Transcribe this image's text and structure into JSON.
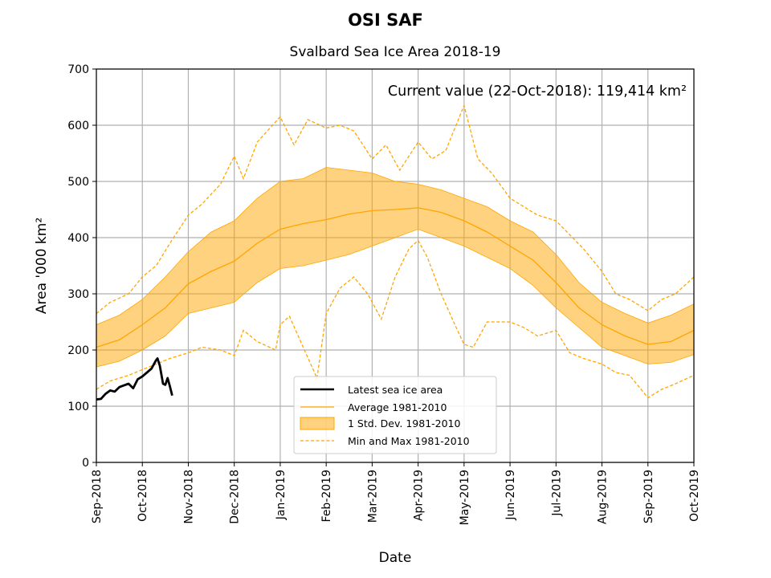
{
  "chart_data": {
    "type": "line",
    "suptitle": "OSI SAF",
    "title": "Svalbard Sea Ice Area 2018-19",
    "annotation": "Current value (22-Oct-2018): 119,414 km²",
    "xlabel": "Date",
    "ylabel": "Area '000 km²",
    "ylim": [
      0,
      700
    ],
    "yticks": [
      0,
      100,
      200,
      300,
      400,
      500,
      600,
      700
    ],
    "xlim": [
      0,
      13
    ],
    "xticks": [
      {
        "pos": 0,
        "label": "Sep-2018"
      },
      {
        "pos": 1,
        "label": "Oct-2018"
      },
      {
        "pos": 2,
        "label": "Nov-2018"
      },
      {
        "pos": 3,
        "label": "Dec-2018"
      },
      {
        "pos": 4,
        "label": "Jan-2019"
      },
      {
        "pos": 5,
        "label": "Feb-2019"
      },
      {
        "pos": 6,
        "label": "Mar-2019"
      },
      {
        "pos": 7,
        "label": "Apr-2019"
      },
      {
        "pos": 8,
        "label": "May-2019"
      },
      {
        "pos": 9,
        "label": "Jun-2019"
      },
      {
        "pos": 10,
        "label": "Jul-2019"
      },
      {
        "pos": 11,
        "label": "Aug-2019"
      },
      {
        "pos": 12,
        "label": "Sep-2019"
      },
      {
        "pos": 13,
        "label": "Oct-2019"
      }
    ],
    "grid": true,
    "legend_position": "lower-center",
    "legend": [
      {
        "key": "latest",
        "label": "Latest sea ice area"
      },
      {
        "key": "average",
        "label": "Average 1981-2010"
      },
      {
        "key": "std",
        "label": "1 Std. Dev. 1981-2010"
      },
      {
        "key": "minmax",
        "label": "Min and Max 1981-2010"
      }
    ],
    "colors": {
      "latest": "#000000",
      "average": "#ffa500",
      "band": "#ffa500",
      "band_opacity": 0.5,
      "minmax": "#ffa500",
      "grid": "#b0b0b0"
    },
    "series": [
      {
        "name": "Latest sea ice area",
        "x": [
          0,
          0.1,
          0.2,
          0.3,
          0.4,
          0.5,
          0.6,
          0.7,
          0.8,
          0.9,
          1.0,
          1.1,
          1.2,
          1.3,
          1.33,
          1.38,
          1.45,
          1.5,
          1.55,
          1.6,
          1.65
        ],
        "y": [
          112,
          113,
          122,
          128,
          126,
          134,
          137,
          140,
          132,
          148,
          153,
          160,
          167,
          182,
          185,
          172,
          140,
          138,
          150,
          135,
          119
        ]
      },
      {
        "name": "Average 1981-2010",
        "x": [
          0,
          0.5,
          1,
          1.5,
          2,
          2.5,
          3,
          3.5,
          4,
          4.5,
          5,
          5.5,
          6,
          6.5,
          7,
          7.5,
          8,
          8.5,
          9,
          9.5,
          10,
          10.5,
          11,
          11.5,
          12,
          12.5,
          13
        ],
        "y": [
          205,
          218,
          245,
          275,
          318,
          340,
          358,
          390,
          415,
          425,
          432,
          442,
          448,
          450,
          453,
          445,
          430,
          410,
          385,
          360,
          320,
          275,
          245,
          225,
          210,
          215,
          235
        ]
      },
      {
        "name": "1 Std. Dev. upper",
        "x": [
          0,
          0.5,
          1,
          1.5,
          2,
          2.5,
          3,
          3.5,
          4,
          4.5,
          5,
          5.5,
          6,
          6.5,
          7,
          7.5,
          8,
          8.5,
          9,
          9.5,
          10,
          10.5,
          11,
          11.5,
          12,
          12.5,
          13
        ],
        "y": [
          245,
          262,
          290,
          330,
          375,
          410,
          430,
          470,
          500,
          505,
          525,
          520,
          515,
          500,
          495,
          485,
          470,
          455,
          430,
          410,
          370,
          320,
          285,
          265,
          248,
          262,
          282
        ]
      },
      {
        "name": "1 Std. Dev. lower",
        "x": [
          0,
          0.5,
          1,
          1.5,
          2,
          2.5,
          3,
          3.5,
          4,
          4.5,
          5,
          5.5,
          6,
          6.5,
          7,
          7.5,
          8,
          8.5,
          9,
          9.5,
          10,
          10.5,
          11,
          11.5,
          12,
          12.5,
          13
        ],
        "y": [
          170,
          180,
          200,
          225,
          265,
          275,
          285,
          320,
          345,
          350,
          360,
          370,
          385,
          400,
          415,
          400,
          385,
          365,
          345,
          315,
          275,
          240,
          205,
          190,
          175,
          178,
          192
        ]
      },
      {
        "name": "Max 1981-2010",
        "x": [
          0,
          0.3,
          0.7,
          1.0,
          1.3,
          1.6,
          2.0,
          2.3,
          2.7,
          3.0,
          3.2,
          3.5,
          4.0,
          4.3,
          4.6,
          5.0,
          5.3,
          5.6,
          6.0,
          6.3,
          6.6,
          7.0,
          7.3,
          7.6,
          8.0,
          8.3,
          8.6,
          9.0,
          9.3,
          9.6,
          10.0,
          10.3,
          10.6,
          11.0,
          11.3,
          11.6,
          12.0,
          12.3,
          12.6,
          13.0
        ],
        "y": [
          265,
          285,
          300,
          330,
          350,
          390,
          440,
          460,
          495,
          545,
          505,
          570,
          615,
          565,
          610,
          595,
          600,
          590,
          540,
          565,
          520,
          570,
          540,
          555,
          635,
          540,
          515,
          470,
          455,
          440,
          430,
          405,
          380,
          340,
          300,
          290,
          270,
          290,
          300,
          330
        ]
      },
      {
        "name": "Min 1981-2010",
        "x": [
          0,
          0.3,
          0.7,
          1.0,
          1.3,
          1.6,
          2.0,
          2.3,
          2.7,
          3.0,
          3.2,
          3.5,
          3.9,
          4.0,
          4.2,
          4.5,
          4.8,
          5.0,
          5.3,
          5.6,
          5.9,
          6.2,
          6.5,
          6.8,
          7.0,
          7.2,
          7.5,
          7.8,
          8.0,
          8.2,
          8.5,
          9.0,
          9.3,
          9.6,
          10.0,
          10.3,
          10.6,
          11.0,
          11.3,
          11.6,
          12.0,
          12.3,
          12.6,
          13.0
        ],
        "y": [
          130,
          145,
          155,
          165,
          175,
          185,
          195,
          205,
          200,
          190,
          235,
          215,
          200,
          245,
          260,
          205,
          150,
          265,
          310,
          330,
          300,
          255,
          330,
          380,
          395,
          365,
          300,
          245,
          210,
          205,
          250,
          250,
          240,
          225,
          235,
          195,
          185,
          175,
          160,
          155,
          115,
          130,
          140,
          155
        ]
      }
    ]
  }
}
